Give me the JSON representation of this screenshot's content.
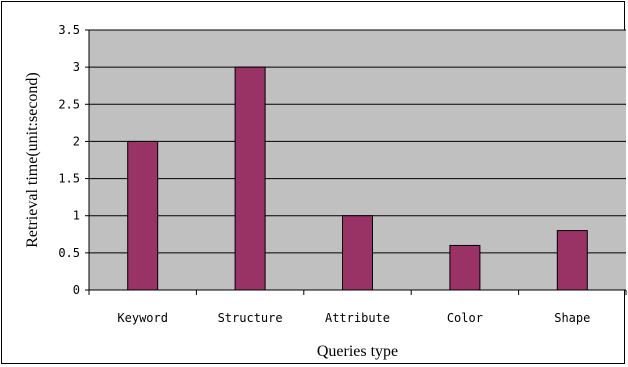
{
  "chart_data": {
    "type": "bar",
    "categories": [
      "Keyword",
      "Structure",
      "Attribute",
      "Color",
      "Shape"
    ],
    "values": [
      2.0,
      3.0,
      1.0,
      0.6,
      0.8
    ],
    "title": "",
    "xlabel": "Queries type",
    "ylabel": "Retrieval time(unit:second)",
    "ylim": [
      0,
      3.5
    ],
    "yticks": [
      "0",
      "0.5",
      "1",
      "1.5",
      "2",
      "2.5",
      "3",
      "3.5"
    ],
    "grid": true,
    "legend": "none",
    "colors": {
      "bar": "#993366",
      "plot_background": "#c0c0c0",
      "gridline": "#000000"
    }
  }
}
